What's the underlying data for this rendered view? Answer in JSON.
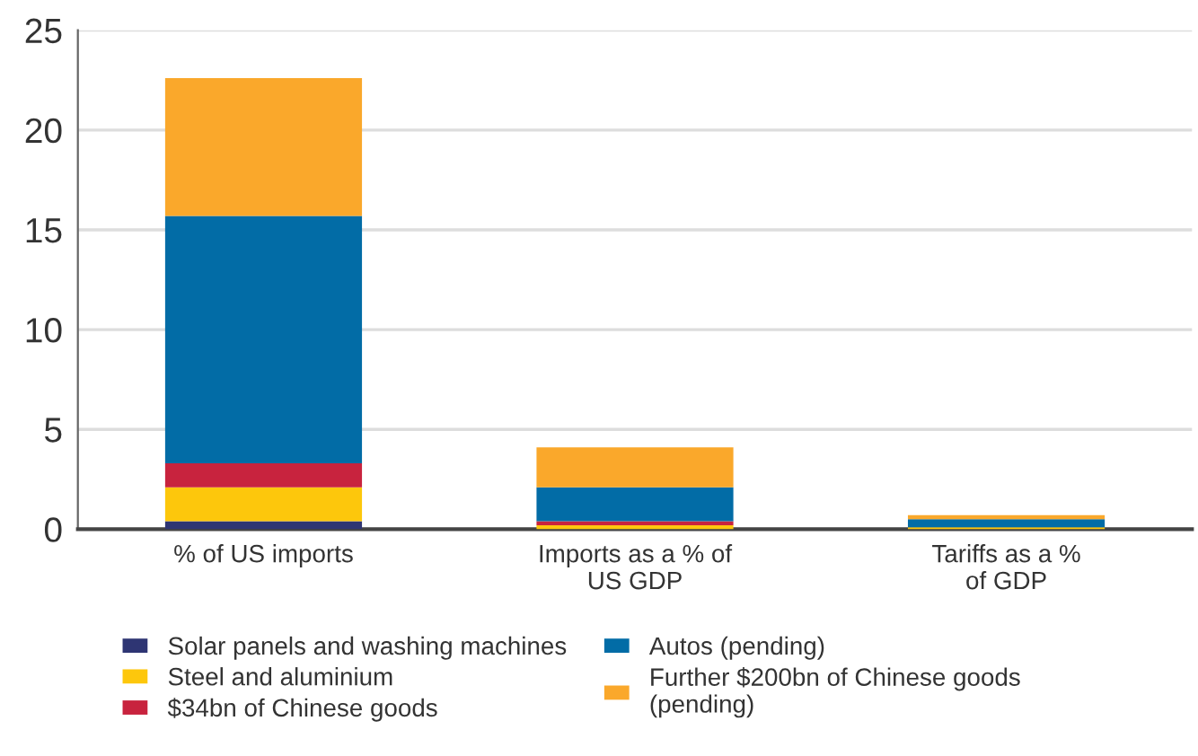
{
  "chart_data": {
    "type": "bar",
    "stacked": true,
    "categories": [
      "% of US imports",
      "Imports as a % of\nUS GDP",
      "Tariffs as a %\nof GDP"
    ],
    "series": [
      {
        "name": "Solar panels and washing machines",
        "color": "#2e3573",
        "values": [
          0.4,
          null,
          null
        ]
      },
      {
        "name": "Steel and aluminium",
        "color": "#fdc70c",
        "values": [
          1.7,
          0.2,
          0.1
        ]
      },
      {
        "name": "$34bn of Chinese goods",
        "color": "#c8233e",
        "values": [
          1.2,
          0.2,
          null
        ]
      },
      {
        "name": "Autos (pending)",
        "color": "#026ca6",
        "values": [
          12.4,
          1.7,
          0.4
        ]
      },
      {
        "name": "Further $200bn of Chinese goods\n(pending)",
        "color": "#faa82b",
        "values": [
          6.9,
          2.0,
          0.2
        ]
      }
    ],
    "ylim": [
      0,
      25
    ],
    "yticks": [
      0,
      5,
      10,
      15,
      20,
      25
    ],
    "grid": "y",
    "legend": "bottom"
  }
}
